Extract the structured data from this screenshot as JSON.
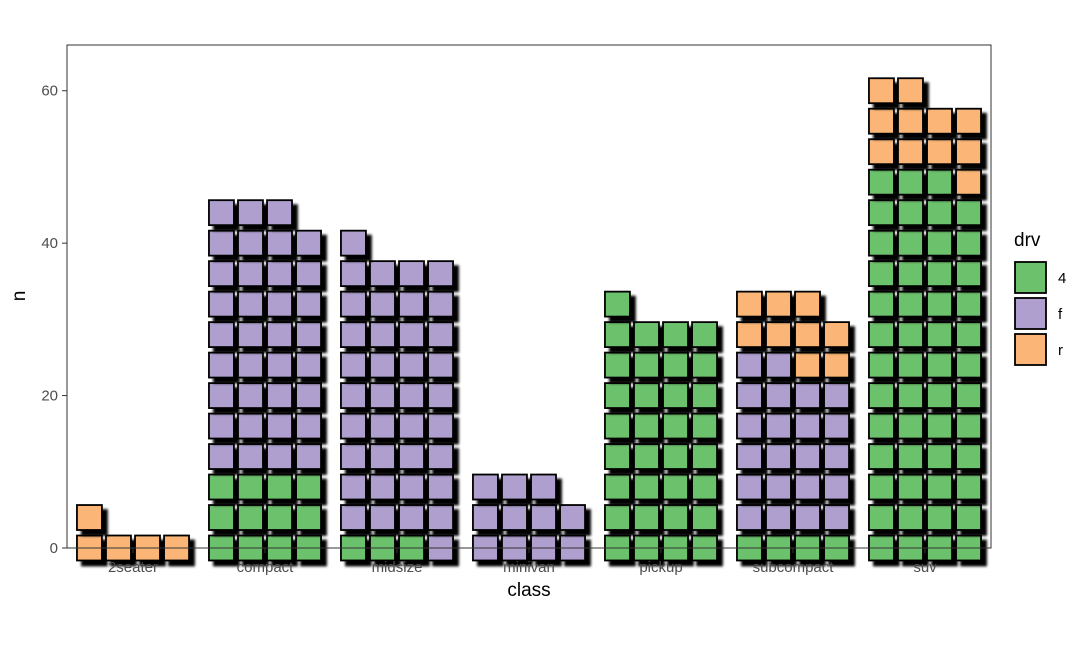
{
  "chart_data": {
    "type": "bar",
    "subtype": "waffle-stacked",
    "title": "",
    "xlabel": "class",
    "ylabel": "n",
    "ylim": [
      0,
      66
    ],
    "yticks": [
      0,
      20,
      40,
      60
    ],
    "grid": false,
    "legend": {
      "title": "drv",
      "placement": "right"
    },
    "categories": [
      "2seater",
      "compact",
      "midsize",
      "minivan",
      "pickup",
      "subcompact",
      "suv"
    ],
    "series": [
      {
        "name": "4",
        "color": "#6cc16c",
        "values": [
          0,
          12,
          3,
          0,
          33,
          4,
          51
        ]
      },
      {
        "name": "f",
        "color": "#ae9fce",
        "values": [
          0,
          35,
          38,
          11,
          0,
          22,
          0
        ]
      },
      {
        "name": "r",
        "color": "#fbb677",
        "values": [
          5,
          0,
          0,
          0,
          0,
          9,
          11
        ]
      }
    ]
  }
}
